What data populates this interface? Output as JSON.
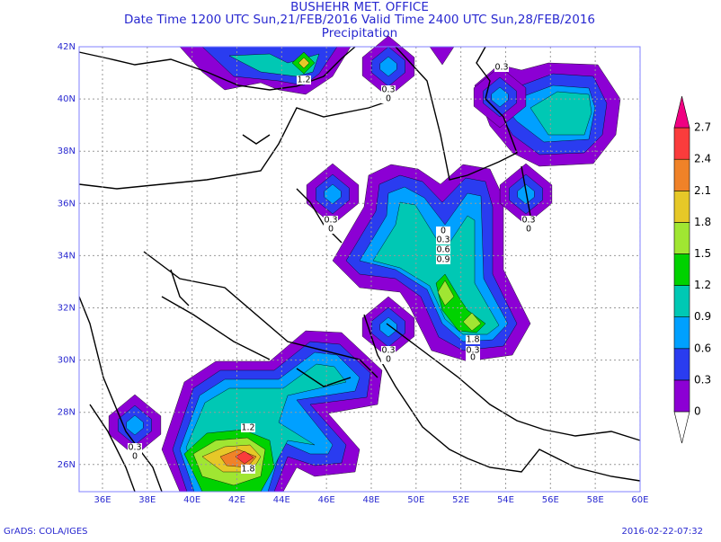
{
  "header": {
    "title": "BUSHEHR MET. OFFICE",
    "subtitle": "Date Time 1200 UTC Sun,21/FEB/2016 Valid Time 2400 UTC Sun,28/FEB/2016",
    "field": "Precipitation"
  },
  "map": {
    "lon_labels": [
      "36E",
      "38E",
      "40E",
      "42E",
      "44E",
      "46E",
      "48E",
      "50E",
      "52E",
      "54E",
      "56E",
      "58E",
      "60E"
    ],
    "lat_labels": [
      "42N",
      "40N",
      "38N",
      "36N",
      "34N",
      "32N",
      "30N",
      "28N",
      "26N"
    ],
    "contour_labels": [
      "1.2",
      "0.3",
      "0",
      "0.3",
      "0.3",
      "0",
      "0.3",
      "0",
      "0",
      "0.3",
      "0.6",
      "0.9",
      "1.8",
      "0.3",
      "0",
      "0.3",
      "0",
      "1.2",
      "1.8",
      "0.3",
      "0"
    ]
  },
  "legend": {
    "labels": [
      "0",
      "0.3",
      "0.6",
      "0.9",
      "1.2",
      "1.5",
      "1.8",
      "2.1",
      "2.4",
      "2.7"
    ],
    "colors": [
      "#ffffff",
      "#8c00d4",
      "#2a3cf0",
      "#00a0ff",
      "#00c8b4",
      "#00d200",
      "#a0e632",
      "#e6c828",
      "#f08228",
      "#fa3c3c",
      "#f00082"
    ]
  },
  "footer": {
    "left": "GrADS: COLA/IGES",
    "right": "2016-02-22-07:32"
  }
}
